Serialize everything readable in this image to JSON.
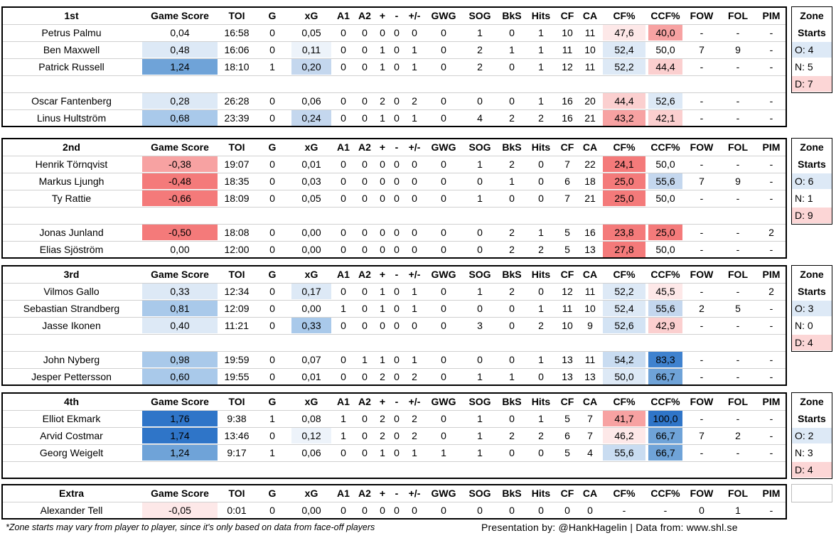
{
  "columns": [
    "Game Score",
    "TOI",
    "G",
    "xG",
    "A1",
    "A2",
    "+",
    "-",
    "+/-",
    "GWG",
    "SOG",
    "BkS",
    "Hits",
    "CF",
    "CA",
    "CF%",
    "CCF%",
    "FOW",
    "FOL",
    "PIM"
  ],
  "zone_header": [
    "Zone",
    "Starts"
  ],
  "colors": {
    "blue_strong": "#2f75c8",
    "blue_mid": "#6fa3d8",
    "blue_light": "#a9c9ea",
    "blue_pale": "#dde9f6",
    "red_strong": "#f47a7a",
    "red_mid": "#f7a2a2",
    "red_light": "#fbcfcf",
    "red_pale": "#fde8e8",
    "zone_o": "#dde9f6",
    "zone_d": "#fcd6d6"
  },
  "lines": [
    {
      "name": "1st",
      "groups": [
        [
          {
            "player": "Petrus Palmu",
            "values": [
              "0,04",
              "16:58",
              "0",
              "0,05",
              "0",
              "0",
              "0",
              "0",
              "0",
              "0",
              "1",
              "0",
              "1",
              "10",
              "11",
              "47,6",
              "40,0",
              "-",
              "-",
              "-"
            ]
          },
          {
            "player": "Ben Maxwell",
            "values": [
              "0,48",
              "16:06",
              "0",
              "0,11",
              "0",
              "0",
              "1",
              "0",
              "1",
              "0",
              "2",
              "1",
              "1",
              "11",
              "10",
              "52,4",
              "50,0",
              "7",
              "9",
              "-"
            ]
          },
          {
            "player": "Patrick Russell",
            "values": [
              "1,24",
              "18:10",
              "1",
              "0,20",
              "0",
              "0",
              "1",
              "0",
              "1",
              "0",
              "2",
              "0",
              "1",
              "12",
              "11",
              "52,2",
              "44,4",
              "-",
              "-",
              "-"
            ]
          }
        ],
        [
          {
            "player": "Oscar Fantenberg",
            "values": [
              "0,28",
              "26:28",
              "0",
              "0,06",
              "0",
              "0",
              "2",
              "0",
              "2",
              "0",
              "0",
              "0",
              "1",
              "16",
              "20",
              "44,4",
              "52,6",
              "-",
              "-",
              "-"
            ]
          },
          {
            "player": "Linus Hultström",
            "values": [
              "0,68",
              "23:39",
              "0",
              "0,24",
              "0",
              "0",
              "1",
              "0",
              "1",
              "0",
              "4",
              "2",
              "2",
              "16",
              "21",
              "43,2",
              "42,1",
              "-",
              "-",
              "-"
            ]
          }
        ]
      ],
      "zone": {
        "o": "O: 4",
        "n": "N: 5",
        "d": "D: 7"
      }
    },
    {
      "name": "2nd",
      "groups": [
        [
          {
            "player": "Henrik Törnqvist",
            "values": [
              "-0,38",
              "19:07",
              "0",
              "0,01",
              "0",
              "0",
              "0",
              "0",
              "0",
              "0",
              "1",
              "2",
              "0",
              "7",
              "22",
              "24,1",
              "50,0",
              "-",
              "-",
              "-"
            ]
          },
          {
            "player": "Markus Ljungh",
            "values": [
              "-0,48",
              "18:35",
              "0",
              "0,03",
              "0",
              "0",
              "0",
              "0",
              "0",
              "0",
              "0",
              "1",
              "0",
              "6",
              "18",
              "25,0",
              "55,6",
              "7",
              "9",
              "-"
            ]
          },
          {
            "player": "Ty Rattie",
            "values": [
              "-0,66",
              "18:09",
              "0",
              "0,05",
              "0",
              "0",
              "0",
              "0",
              "0",
              "0",
              "1",
              "0",
              "0",
              "7",
              "21",
              "25,0",
              "50,0",
              "-",
              "-",
              "-"
            ]
          }
        ],
        [
          {
            "player": "Jonas Junland",
            "values": [
              "-0,50",
              "18:08",
              "0",
              "0,00",
              "0",
              "0",
              "0",
              "0",
              "0",
              "0",
              "0",
              "2",
              "1",
              "5",
              "16",
              "23,8",
              "25,0",
              "-",
              "-",
              "2"
            ]
          },
          {
            "player": "Elias Sjöström",
            "values": [
              "0,00",
              "12:00",
              "0",
              "0,00",
              "0",
              "0",
              "0",
              "0",
              "0",
              "0",
              "0",
              "2",
              "2",
              "5",
              "13",
              "27,8",
              "50,0",
              "-",
              "-",
              "-"
            ]
          }
        ]
      ],
      "zone": {
        "o": "O: 6",
        "n": "N: 1",
        "d": "D: 9"
      }
    },
    {
      "name": "3rd",
      "groups": [
        [
          {
            "player": "Vilmos Gallo",
            "values": [
              "0,33",
              "12:34",
              "0",
              "0,17",
              "0",
              "0",
              "1",
              "0",
              "1",
              "0",
              "1",
              "2",
              "0",
              "12",
              "11",
              "52,2",
              "45,5",
              "-",
              "-",
              "2"
            ]
          },
          {
            "player": "Sebastian Strandberg",
            "values": [
              "0,81",
              "12:09",
              "0",
              "0,00",
              "1",
              "0",
              "1",
              "0",
              "1",
              "0",
              "0",
              "0",
              "1",
              "11",
              "10",
              "52,4",
              "55,6",
              "2",
              "5",
              "-"
            ]
          },
          {
            "player": "Jasse Ikonen",
            "values": [
              "0,40",
              "11:21",
              "0",
              "0,33",
              "0",
              "0",
              "0",
              "0",
              "0",
              "0",
              "3",
              "0",
              "2",
              "10",
              "9",
              "52,6",
              "42,9",
              "-",
              "-",
              "-"
            ]
          }
        ],
        [
          {
            "player": "John Nyberg",
            "values": [
              "0,98",
              "19:59",
              "0",
              "0,07",
              "0",
              "1",
              "1",
              "0",
              "1",
              "0",
              "0",
              "0",
              "1",
              "13",
              "11",
              "54,2",
              "83,3",
              "-",
              "-",
              "-"
            ]
          },
          {
            "player": "Jesper Pettersson",
            "values": [
              "0,60",
              "19:55",
              "0",
              "0,01",
              "0",
              "0",
              "2",
              "0",
              "2",
              "0",
              "1",
              "1",
              "0",
              "13",
              "13",
              "50,0",
              "66,7",
              "-",
              "-",
              "-"
            ]
          }
        ]
      ],
      "zone": {
        "o": "O: 3",
        "n": "N: 0",
        "d": "D: 4"
      }
    },
    {
      "name": "4th",
      "groups": [
        [
          {
            "player": "Elliot Ekmark",
            "values": [
              "1,76",
              "9:38",
              "1",
              "0,08",
              "1",
              "0",
              "2",
              "0",
              "2",
              "0",
              "1",
              "0",
              "1",
              "5",
              "7",
              "41,7",
              "100,0",
              "-",
              "-",
              "-"
            ]
          },
          {
            "player": "Arvid Costmar",
            "values": [
              "1,74",
              "13:46",
              "0",
              "0,12",
              "1",
              "0",
              "2",
              "0",
              "2",
              "0",
              "1",
              "2",
              "2",
              "6",
              "7",
              "46,2",
              "66,7",
              "7",
              "2",
              "-"
            ]
          },
          {
            "player": "Georg Weigelt",
            "values": [
              "1,24",
              "9:17",
              "1",
              "0,06",
              "0",
              "0",
              "1",
              "0",
              "1",
              "1",
              "1",
              "0",
              "0",
              "5",
              "4",
              "55,6",
              "66,7",
              "-",
              "-",
              "-"
            ]
          }
        ]
      ],
      "zone": {
        "o": "O: 2",
        "n": "N: 3",
        "d": "D: 4"
      }
    },
    {
      "name": "Extra",
      "groups": [
        [
          {
            "player": "Alexander Tell",
            "values": [
              "-0,05",
              "0:01",
              "0",
              "0,00",
              "0",
              "0",
              "0",
              "0",
              "0",
              "0",
              "0",
              "0",
              "0",
              "0",
              "0",
              "-",
              "-",
              "0",
              "1",
              "-"
            ]
          }
        ]
      ],
      "zone": null
    }
  ],
  "footnote": "*Zone starts may vary from player to player, since it's only based on data from face-off players",
  "credits": "Presentation by: @HankHagelin | Data from: www.shl.se"
}
